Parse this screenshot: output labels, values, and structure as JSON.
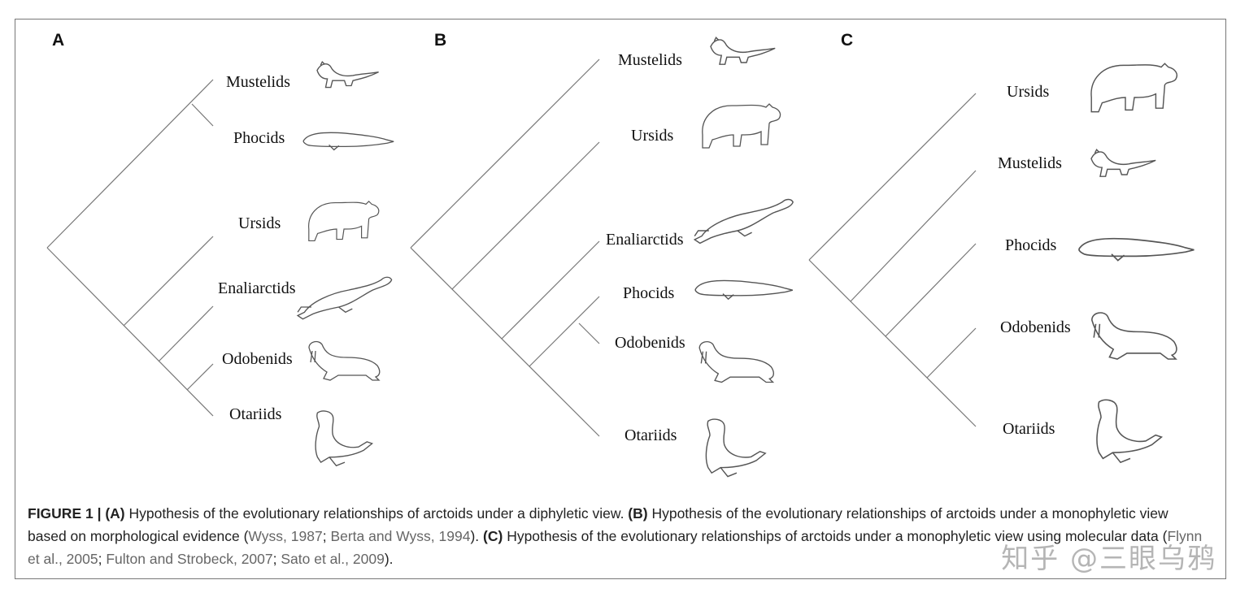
{
  "panels": {
    "a": {
      "letter": "A",
      "taxa": [
        "Mustelids",
        "Phocids",
        "Ursids",
        "Enaliarctids",
        "Odobenids",
        "Otariids"
      ]
    },
    "b": {
      "letter": "B",
      "taxa": [
        "Mustelids",
        "Ursids",
        "Enaliarctids",
        "Phocids",
        "Odobenids",
        "Otariids"
      ]
    },
    "c": {
      "letter": "C",
      "taxa": [
        "Ursids",
        "Mustelids",
        "Phocids",
        "Odobenids",
        "Otariids"
      ]
    }
  },
  "icons": {
    "Mustelids": "weasel-icon",
    "Phocids": "seal-icon",
    "Ursids": "bear-icon",
    "Enaliarctids": "enaliarctid-icon",
    "Odobenids": "walrus-icon",
    "Otariids": "sea-lion-icon"
  },
  "caption": {
    "label": "FIGURE 1 | ",
    "a_tag": "(A)",
    "a_text": " Hypothesis of the evolutionary relationships of arctoids under a diphyletic view. ",
    "b_tag": "(B)",
    "b_text": " Hypothesis of the evolutionary relationships of arctoids under a monophyletic view based on morphological evidence (",
    "b_cite1": "Wyss, 1987",
    "b_sep": "; ",
    "b_cite2": "Berta and Wyss, 1994",
    "b_end": "). ",
    "c_tag": "(C)",
    "c_text": " Hypothesis of the evolutionary relationships of arctoids under a monophyletic view using molecular data (",
    "c_cite1": "Flynn et al., 2005",
    "c_sep1": "; ",
    "c_cite2": "Fulton and Strobeck, 2007",
    "c_sep2": "; ",
    "c_cite3": "Sato et al., 2009",
    "c_end": ")."
  },
  "watermark": "知乎 @三眼乌鸦"
}
